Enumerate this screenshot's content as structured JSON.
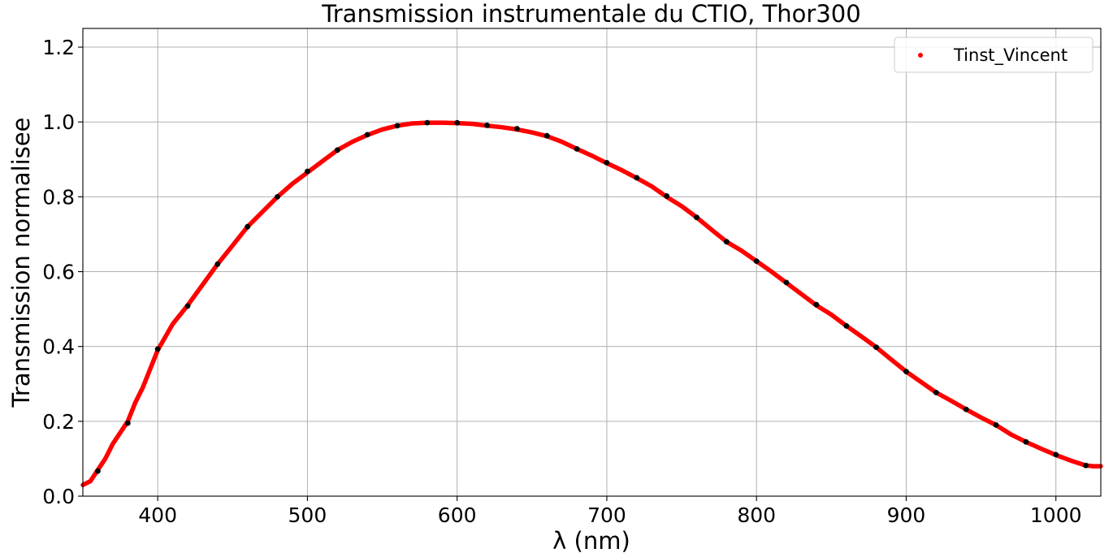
{
  "chart_data": {
    "type": "scatter",
    "title": "Transmission instrumentale du CTIO, Thor300",
    "xlabel": "λ (nm)",
    "ylabel": "Transmission normalisee",
    "xlim": [
      350,
      1030
    ],
    "ylim": [
      0.0,
      1.25
    ],
    "xticks": [
      400,
      500,
      600,
      700,
      800,
      900,
      1000
    ],
    "yticks": [
      0.0,
      0.2,
      0.4,
      0.6,
      0.8,
      1.0,
      1.2
    ],
    "xtick_labels": [
      "400",
      "500",
      "600",
      "700",
      "800",
      "900",
      "1000"
    ],
    "ytick_labels": [
      "0.0",
      "0.2",
      "0.4",
      "0.6",
      "0.8",
      "1.0",
      "1.2"
    ],
    "grid": true,
    "legend_position": "top-right",
    "series": [
      {
        "name": "Tinst_Vincent",
        "color": "#ff0000",
        "marker": "dense-dots",
        "x": [
          350,
          355,
          360,
          365,
          370,
          375,
          380,
          385,
          390,
          395,
          400,
          410,
          420,
          430,
          440,
          450,
          460,
          470,
          480,
          490,
          500,
          510,
          520,
          530,
          540,
          550,
          560,
          570,
          580,
          590,
          600,
          610,
          620,
          630,
          640,
          650,
          660,
          670,
          680,
          690,
          700,
          710,
          720,
          730,
          740,
          750,
          760,
          770,
          780,
          790,
          800,
          810,
          820,
          830,
          840,
          850,
          860,
          870,
          880,
          890,
          900,
          910,
          920,
          930,
          940,
          950,
          960,
          970,
          980,
          990,
          1000,
          1010,
          1020,
          1025,
          1030
        ],
        "y": [
          0.03,
          0.04,
          0.07,
          0.1,
          0.14,
          0.17,
          0.2,
          0.25,
          0.29,
          0.34,
          0.39,
          0.46,
          0.51,
          0.565,
          0.62,
          0.67,
          0.72,
          0.76,
          0.8,
          0.835,
          0.865,
          0.895,
          0.925,
          0.947,
          0.965,
          0.98,
          0.99,
          0.996,
          0.998,
          0.998,
          0.997,
          0.995,
          0.99,
          0.986,
          0.98,
          0.972,
          0.962,
          0.947,
          0.928,
          0.91,
          0.89,
          0.871,
          0.85,
          0.828,
          0.8,
          0.775,
          0.745,
          0.712,
          0.68,
          0.656,
          0.628,
          0.6,
          0.57,
          0.54,
          0.51,
          0.485,
          0.455,
          0.427,
          0.398,
          0.365,
          0.333,
          0.305,
          0.277,
          0.255,
          0.232,
          0.21,
          0.19,
          0.165,
          0.145,
          0.127,
          0.11,
          0.095,
          0.082,
          0.08,
          0.08
        ]
      },
      {
        "name": "",
        "color": "#000000",
        "marker": "dot",
        "x": [
          360,
          380,
          400,
          420,
          440,
          460,
          480,
          500,
          520,
          540,
          560,
          580,
          600,
          620,
          640,
          660,
          680,
          700,
          720,
          740,
          760,
          780,
          800,
          820,
          840,
          860,
          880,
          900,
          920,
          940,
          960,
          980,
          1000,
          1020
        ],
        "y": [
          0.067,
          0.195,
          0.393,
          0.508,
          0.62,
          0.72,
          0.8,
          0.868,
          0.925,
          0.966,
          0.99,
          0.998,
          0.998,
          0.991,
          0.982,
          0.963,
          0.928,
          0.891,
          0.851,
          0.802,
          0.745,
          0.68,
          0.628,
          0.571,
          0.512,
          0.455,
          0.398,
          0.333,
          0.277,
          0.232,
          0.19,
          0.145,
          0.111,
          0.082
        ]
      }
    ]
  }
}
